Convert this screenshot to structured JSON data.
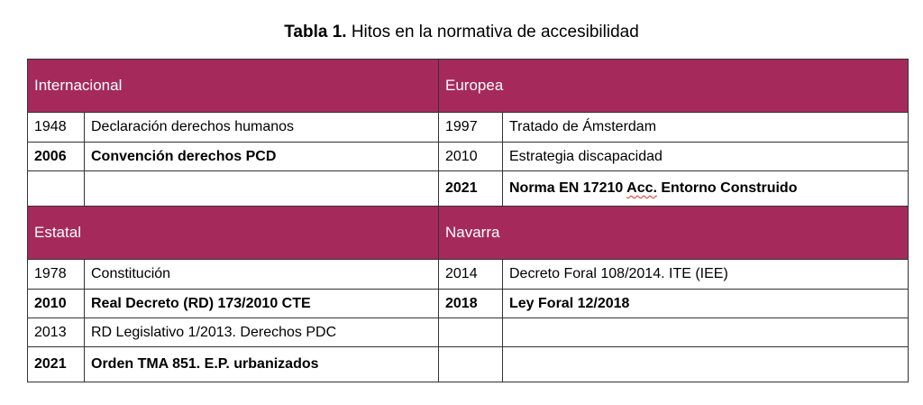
{
  "caption": {
    "label": "Tabla  1.",
    "text": " Hitos en la normativa de accesibilidad"
  },
  "sections": {
    "internacional": {
      "title": "Internacional",
      "rows": [
        {
          "year": "1948",
          "text": "Declaración derechos humanos",
          "bold": false
        },
        {
          "year": "2006",
          "text": "Convención derechos PCD",
          "bold": true
        },
        {
          "year": "",
          "text": "",
          "bold": false
        }
      ]
    },
    "europea": {
      "title": "Europea",
      "rows": [
        {
          "year": "1997",
          "text": "Tratado de Ámsterdam",
          "bold": false
        },
        {
          "year": "2010",
          "text": "Estrategia discapacidad",
          "bold": false
        },
        {
          "year": "2021",
          "text_before": "Norma EN 17210 ",
          "text_flagged": "Acc.",
          "text_after": " Entorno Construido",
          "bold": true
        }
      ]
    },
    "estatal": {
      "title": "Estatal",
      "rows": [
        {
          "year": "1978",
          "text": "Constitución",
          "bold": false
        },
        {
          "year": "2010",
          "text": "Real Decreto (RD) 173/2010 CTE",
          "bold": true
        },
        {
          "year": "2013",
          "text": "RD Legislativo 1/2013. Derechos PDC",
          "bold": false
        },
        {
          "year": "2021",
          "text": "Orden TMA 851. E.P. urbanizados",
          "bold": true
        }
      ]
    },
    "navarra": {
      "title": "Navarra",
      "rows": [
        {
          "year": "2014",
          "text": "Decreto Foral 108/2014. ITE (IEE)",
          "bold": false
        },
        {
          "year": "2018",
          "text": "Ley Foral 12/2018",
          "bold": true
        },
        {
          "year": "",
          "text": "",
          "bold": false
        },
        {
          "year": "",
          "text": "",
          "bold": false
        }
      ]
    }
  },
  "colors": {
    "header_bg": "#a52a5b",
    "header_text": "#ffffff",
    "border": "#333333",
    "spellcheck_underline": "#d9302f"
  }
}
